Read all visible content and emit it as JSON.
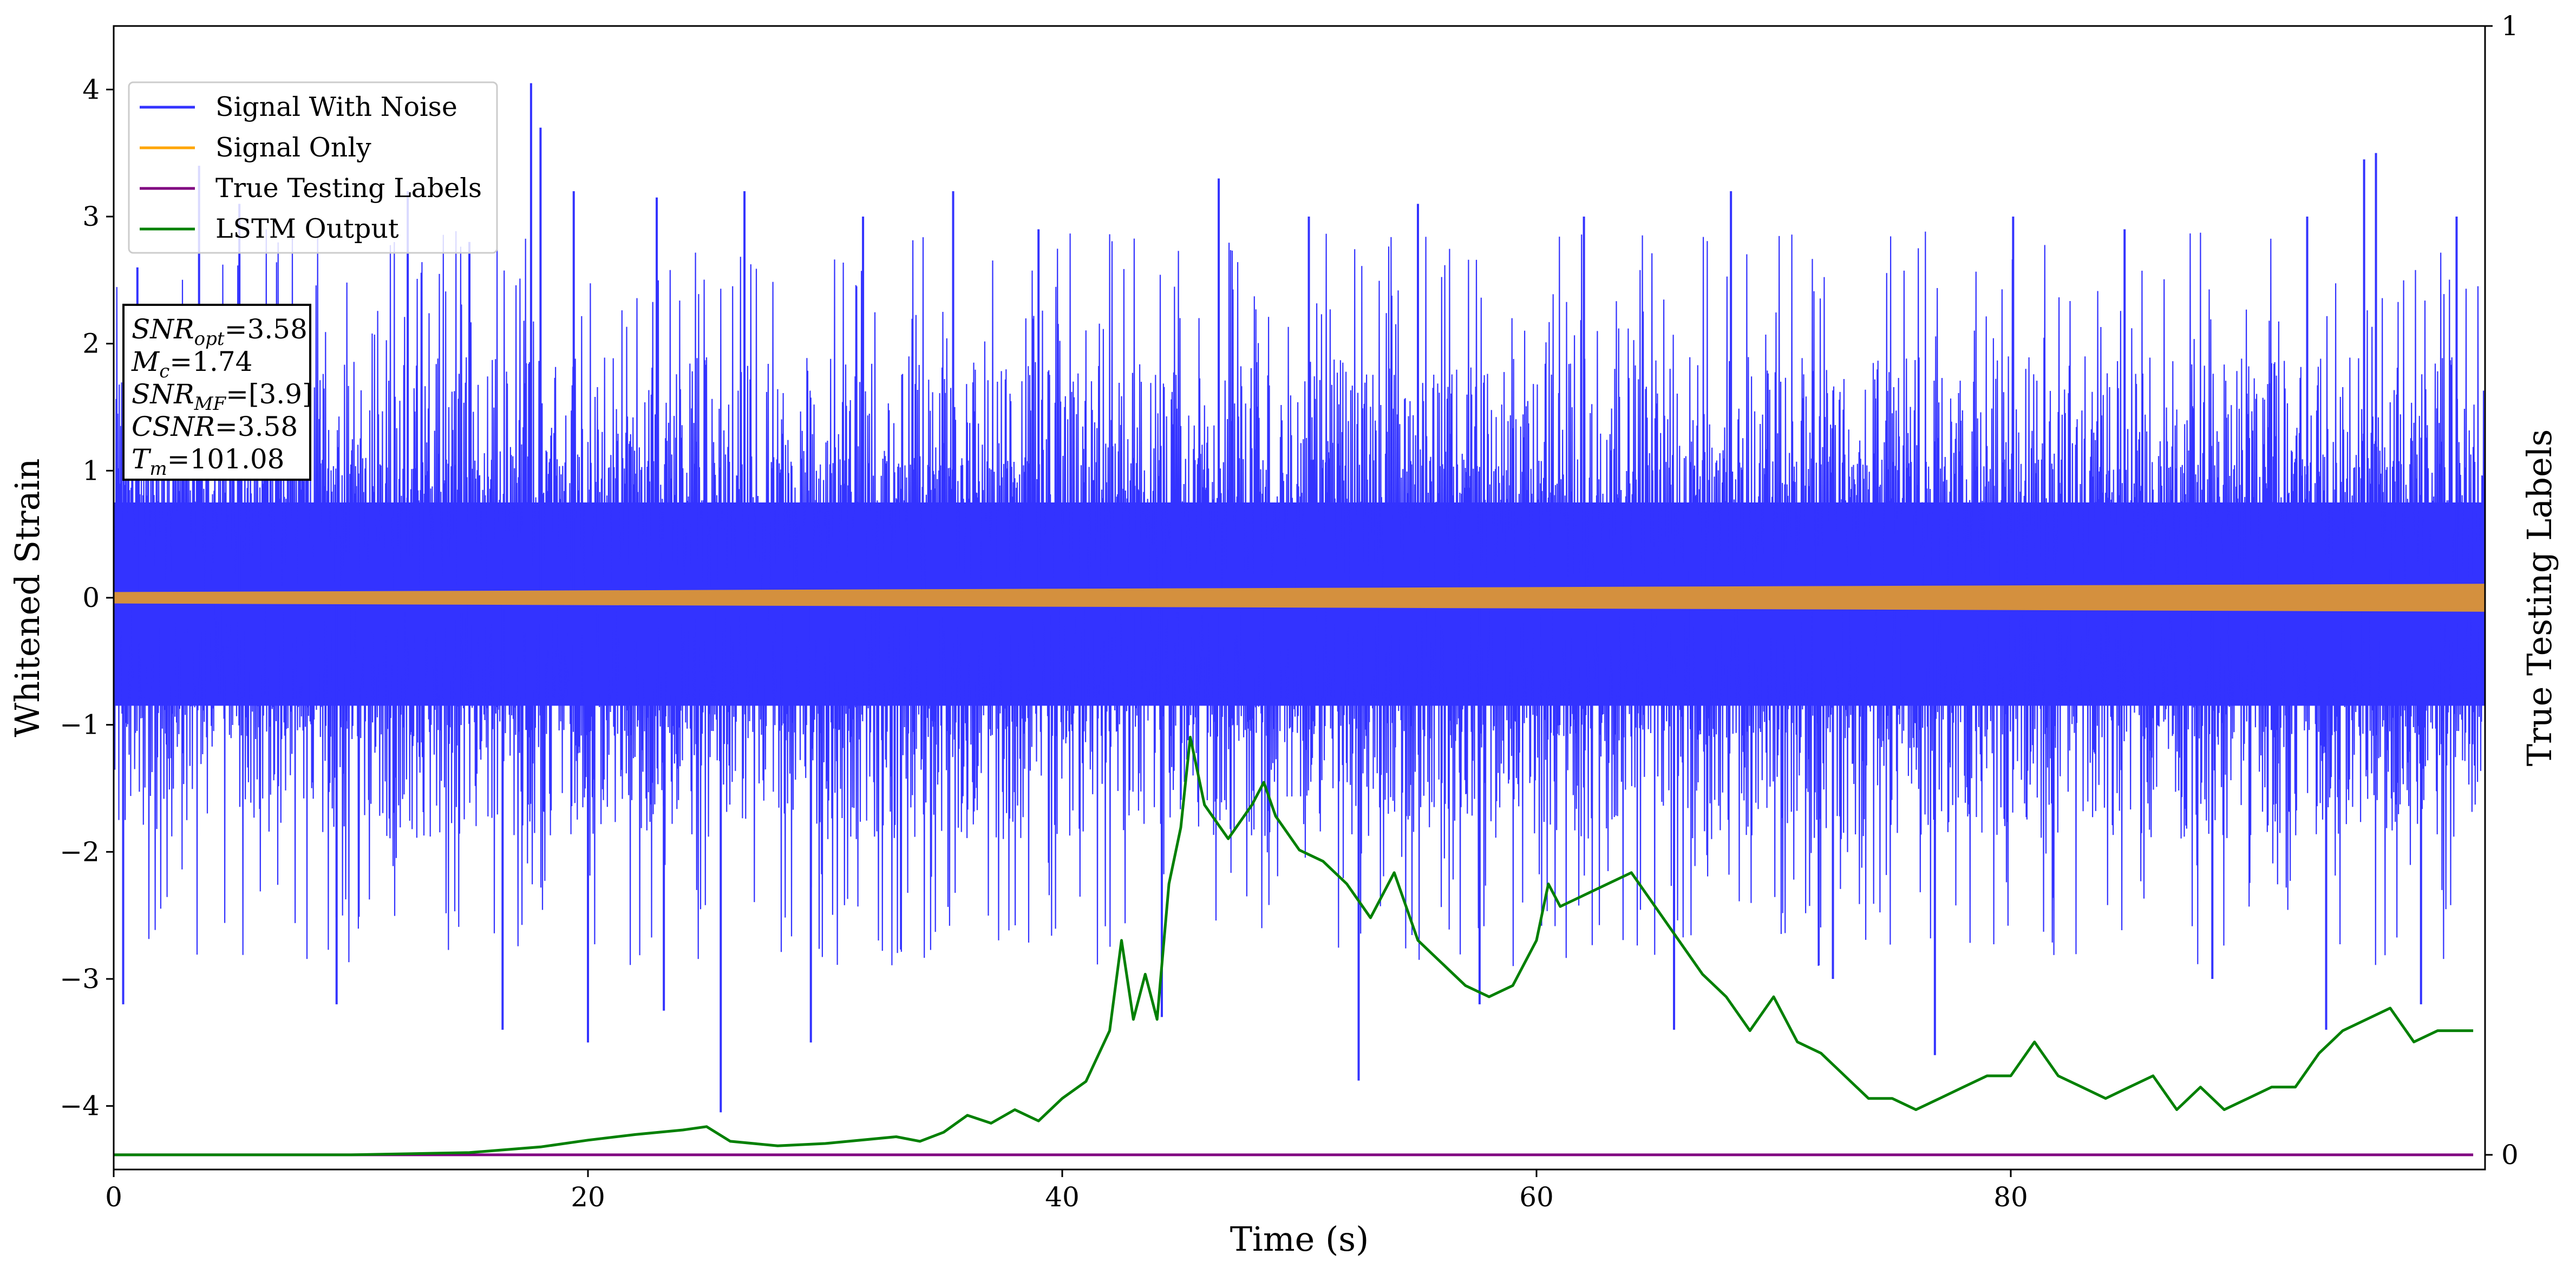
{
  "chart_data": {
    "type": "line",
    "xlabel": "Time (s)",
    "ylabel": "Whitened Strain",
    "y2label": "True Testing Labels",
    "xlim": [
      0,
      100
    ],
    "ylim": [
      -4.5,
      4.5
    ],
    "y2lim": [
      -0.013,
      1.0
    ],
    "xticks": [
      0,
      20,
      40,
      60,
      80
    ],
    "xtick_labels": [
      "0",
      "20",
      "40",
      "60",
      "80"
    ],
    "yticks": [
      4,
      3,
      2,
      1,
      0,
      -1,
      -2,
      -3,
      -4
    ],
    "ytick_labels": [
      "4",
      "3",
      "2",
      "1",
      "0",
      "−1",
      "−2",
      "−3",
      "−4"
    ],
    "y2ticks": [
      1,
      0
    ],
    "y2tick_labels": [
      "1",
      "0"
    ],
    "grid": false,
    "legend_position": "upper-left",
    "series": [
      {
        "name": "Signal With Noise",
        "axis": "left",
        "color": "#3333ff",
        "kind": "noise-band",
        "typical_range": [
          -1.5,
          1.4
        ],
        "extremes": [
          -4.05,
          4.05
        ],
        "peaks": [
          [
            0.4,
            -3.2
          ],
          [
            1.0,
            2.6
          ],
          [
            3.6,
            3.4
          ],
          [
            5.3,
            3.1
          ],
          [
            9.4,
            -3.2
          ],
          [
            12.4,
            3.2
          ],
          [
            15.0,
            2.8
          ],
          [
            16.4,
            -3.4
          ],
          [
            17.6,
            4.05
          ],
          [
            18.0,
            3.7
          ],
          [
            19.4,
            3.2
          ],
          [
            20.0,
            -3.5
          ],
          [
            22.9,
            3.15
          ],
          [
            23.2,
            -3.25
          ],
          [
            25.6,
            -4.05
          ],
          [
            26.6,
            3.2
          ],
          [
            29.4,
            -3.5
          ],
          [
            31.6,
            3.0
          ],
          [
            35.4,
            3.2
          ],
          [
            39.0,
            2.9
          ],
          [
            44.2,
            -3.3
          ],
          [
            46.6,
            3.3
          ],
          [
            50.4,
            3.0
          ],
          [
            52.5,
            -3.8
          ],
          [
            55.0,
            3.1
          ],
          [
            57.6,
            -3.2
          ],
          [
            62.0,
            3.0
          ],
          [
            65.8,
            -3.4
          ],
          [
            68.2,
            3.2
          ],
          [
            72.5,
            -3.0
          ],
          [
            76.8,
            -3.6
          ],
          [
            80.1,
            3.0
          ],
          [
            84.8,
            2.9
          ],
          [
            88.5,
            -3.0
          ],
          [
            92.5,
            3.0
          ],
          [
            93.3,
            -3.4
          ],
          [
            94.9,
            3.45
          ],
          [
            95.4,
            3.5
          ],
          [
            97.3,
            -3.2
          ],
          [
            98.8,
            3.0
          ]
        ]
      },
      {
        "name": "Signal Only",
        "axis": "left",
        "color": "#ffa500",
        "kind": "chirp-band",
        "amplitude_start": 0.045,
        "amplitude_end": 0.11
      },
      {
        "name": "True Testing Labels",
        "axis": "right",
        "color": "#800080",
        "kind": "line",
        "x": [
          0,
          99.5
        ],
        "y": [
          0,
          0
        ]
      },
      {
        "name": "LSTM Output",
        "axis": "right",
        "color": "#008000",
        "kind": "line",
        "x": [
          0,
          10,
          15,
          18,
          20,
          22,
          24,
          25,
          26,
          28,
          30,
          33,
          34,
          35,
          36,
          37,
          38,
          39,
          40,
          41,
          42,
          42.5,
          43,
          43.5,
          44,
          44.5,
          45,
          45.4,
          46,
          47,
          48,
          48.5,
          49,
          50,
          51,
          52,
          53,
          54,
          55,
          56,
          57,
          58,
          59,
          60,
          60.5,
          61,
          62,
          63,
          64,
          65,
          66,
          67,
          68,
          69,
          70,
          71,
          72,
          73,
          74,
          75,
          76,
          77,
          78,
          79,
          80,
          81,
          82,
          83,
          84,
          85,
          86,
          87,
          88,
          89,
          90,
          91,
          92,
          93,
          94,
          95,
          96,
          97,
          98,
          99,
          99.5
        ],
        "y": [
          0.0,
          0.0,
          0.002,
          0.007,
          0.013,
          0.018,
          0.022,
          0.025,
          0.012,
          0.008,
          0.01,
          0.016,
          0.012,
          0.02,
          0.035,
          0.028,
          0.04,
          0.03,
          0.05,
          0.065,
          0.11,
          0.19,
          0.12,
          0.16,
          0.12,
          0.24,
          0.29,
          0.37,
          0.31,
          0.28,
          0.31,
          0.33,
          0.3,
          0.27,
          0.26,
          0.24,
          0.21,
          0.25,
          0.19,
          0.17,
          0.15,
          0.14,
          0.15,
          0.19,
          0.24,
          0.22,
          0.23,
          0.24,
          0.25,
          0.22,
          0.19,
          0.16,
          0.14,
          0.11,
          0.14,
          0.1,
          0.09,
          0.07,
          0.05,
          0.05,
          0.04,
          0.05,
          0.06,
          0.07,
          0.07,
          0.1,
          0.07,
          0.06,
          0.05,
          0.06,
          0.07,
          0.04,
          0.06,
          0.04,
          0.05,
          0.06,
          0.06,
          0.09,
          0.11,
          0.12,
          0.13,
          0.1,
          0.11,
          0.11,
          0.11
        ]
      }
    ],
    "annotation": [
      {
        "symbol": "SNR",
        "sub": "opt",
        "value": "=3.58"
      },
      {
        "symbol": "M",
        "sub": "c",
        "value": "=1.74"
      },
      {
        "symbol": "SNR",
        "sub": "MF",
        "value": "=[3.9]"
      },
      {
        "symbol": "CSNR",
        "sub": "",
        "value": "=3.58"
      },
      {
        "symbol": "T",
        "sub": "m",
        "value": "=101.08"
      }
    ]
  }
}
